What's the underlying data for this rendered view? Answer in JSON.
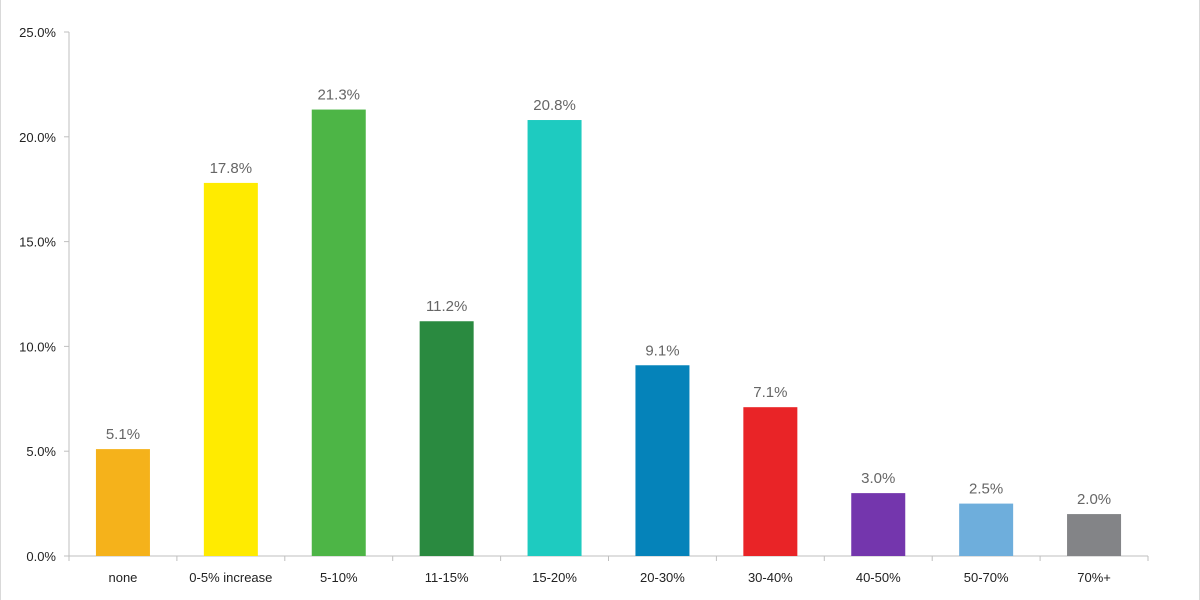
{
  "chart_data": {
    "type": "bar",
    "title": "",
    "xlabel": "",
    "ylabel": "",
    "categories": [
      "none",
      "0-5% increase",
      "5-10%",
      "11-15%",
      "15-20%",
      "20-30%",
      "30-40%",
      "40-50%",
      "50-70%",
      "70%+"
    ],
    "values": [
      5.1,
      17.8,
      21.3,
      11.2,
      20.8,
      9.1,
      7.1,
      3.0,
      2.5,
      2.0
    ],
    "data_labels": [
      "5.1%",
      "17.8%",
      "21.3%",
      "11.2%",
      "20.8%",
      "9.1%",
      "7.1%",
      "3.0%",
      "2.5%",
      "2.0%"
    ],
    "colors": [
      "#f5b21b",
      "#ffeb00",
      "#4db546",
      "#2a8a40",
      "#1ecbc0",
      "#0583ba",
      "#e92427",
      "#7436ad",
      "#6eaedc",
      "#838487"
    ],
    "ylim": [
      0,
      25
    ],
    "yticks": [
      0,
      5,
      10,
      15,
      20,
      25
    ],
    "ytick_labels": [
      "0.0%",
      "5.0%",
      "10.0%",
      "15.0%",
      "20.0%",
      "25.0%"
    ],
    "grid": false,
    "legend": "none"
  }
}
